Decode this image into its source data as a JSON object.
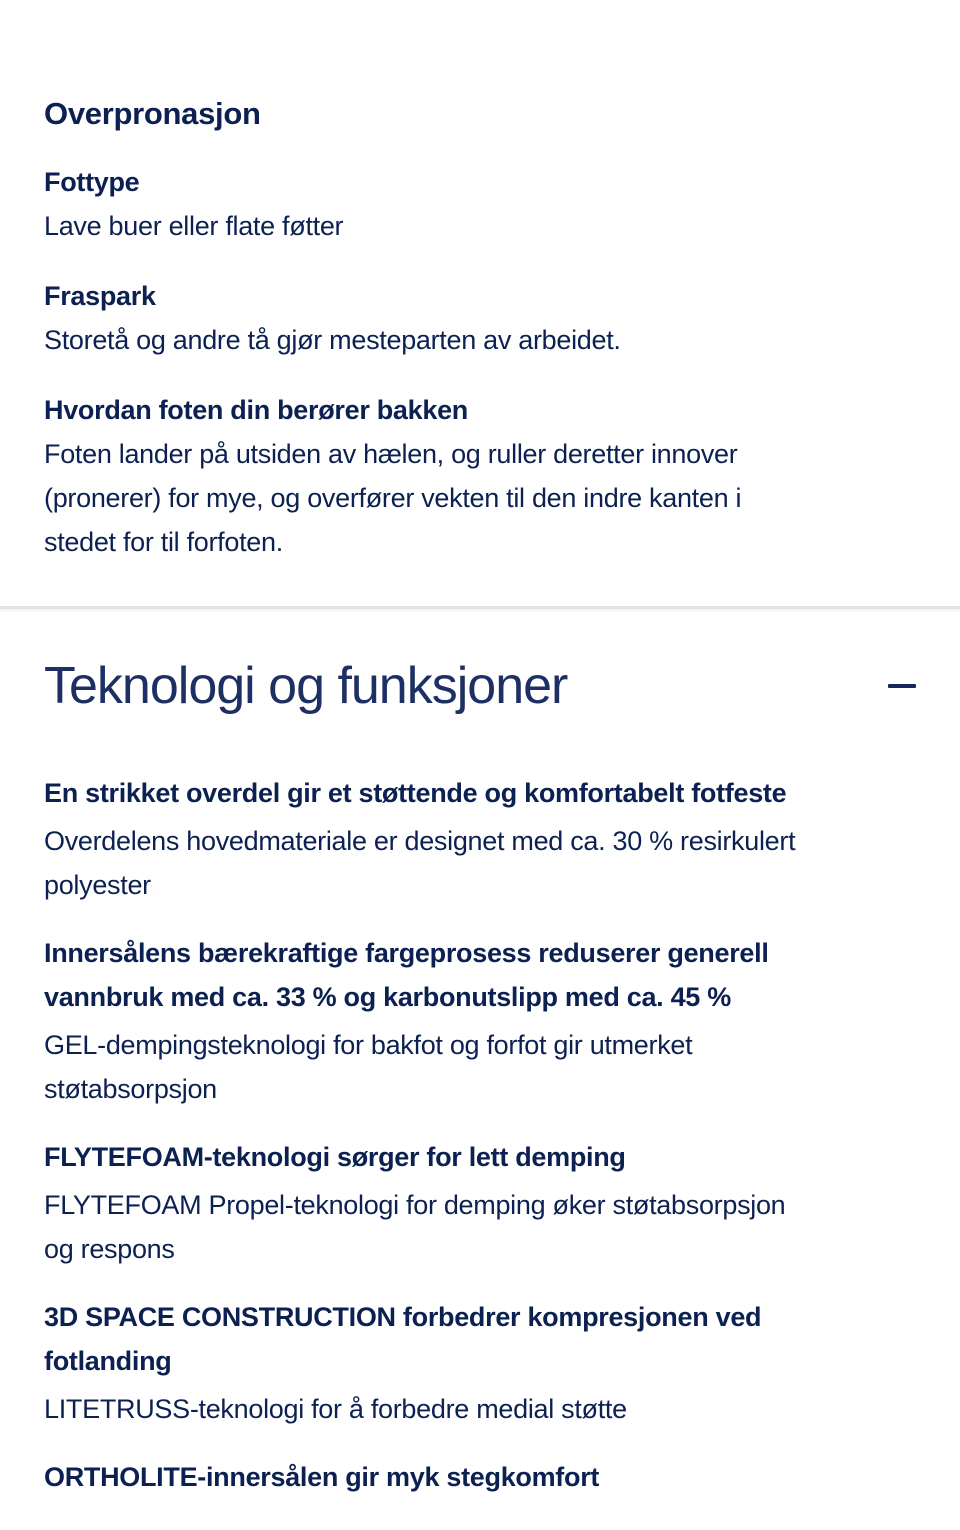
{
  "theme": {
    "background": "#ffffff",
    "text_color": "#0c2152",
    "heading_color": "#1e2f63",
    "divider_color": "#e3e3e3"
  },
  "pronation": {
    "title": "Overpronasjon",
    "items": [
      {
        "label": "Fottype",
        "text": "Lave buer eller flate føtter"
      },
      {
        "label": "Fraspark",
        "text": "Storetå og andre tå gjør mesteparten av arbeidet."
      },
      {
        "label": "Hvordan foten din berører bakken",
        "text": "Foten lander på utsiden av hælen, og ruller deretter innover\n(pronerer) for mye, og overfører vekten til den indre kanten i\nstedet for til forfoten."
      }
    ]
  },
  "technology": {
    "title": "Teknologi og funksjoner",
    "collapse_icon": "minus-icon",
    "features": [
      {
        "title": "En strikket overdel gir et støttende og komfortabelt fotfeste",
        "description": "Overdelens hovedmateriale er designet med ca. 30 % resirkulert\npolyester"
      },
      {
        "title": "Innersålens bærekraftige fargeprosess reduserer generell\nvannbruk med ca. 33 % og karbonutslipp med ca. 45 %",
        "description": "GEL-dempingsteknologi for bakfot og forfot gir utmerket\nstøtabsorpsjon"
      },
      {
        "title": "FLYTEFOAM-teknologi sørger for lett demping",
        "description": "FLYTEFOAM Propel-teknologi for demping øker støtabsorpsjon\nog respons"
      },
      {
        "title": "3D SPACE CONSTRUCTION forbedrer kompresjonen ved\nfotlanding",
        "description": "LITETRUSS-teknologi for å forbedre medial støtte"
      },
      {
        "title": "ORTHOLITE-innersålen gir myk stegkomfort"
      }
    ]
  }
}
